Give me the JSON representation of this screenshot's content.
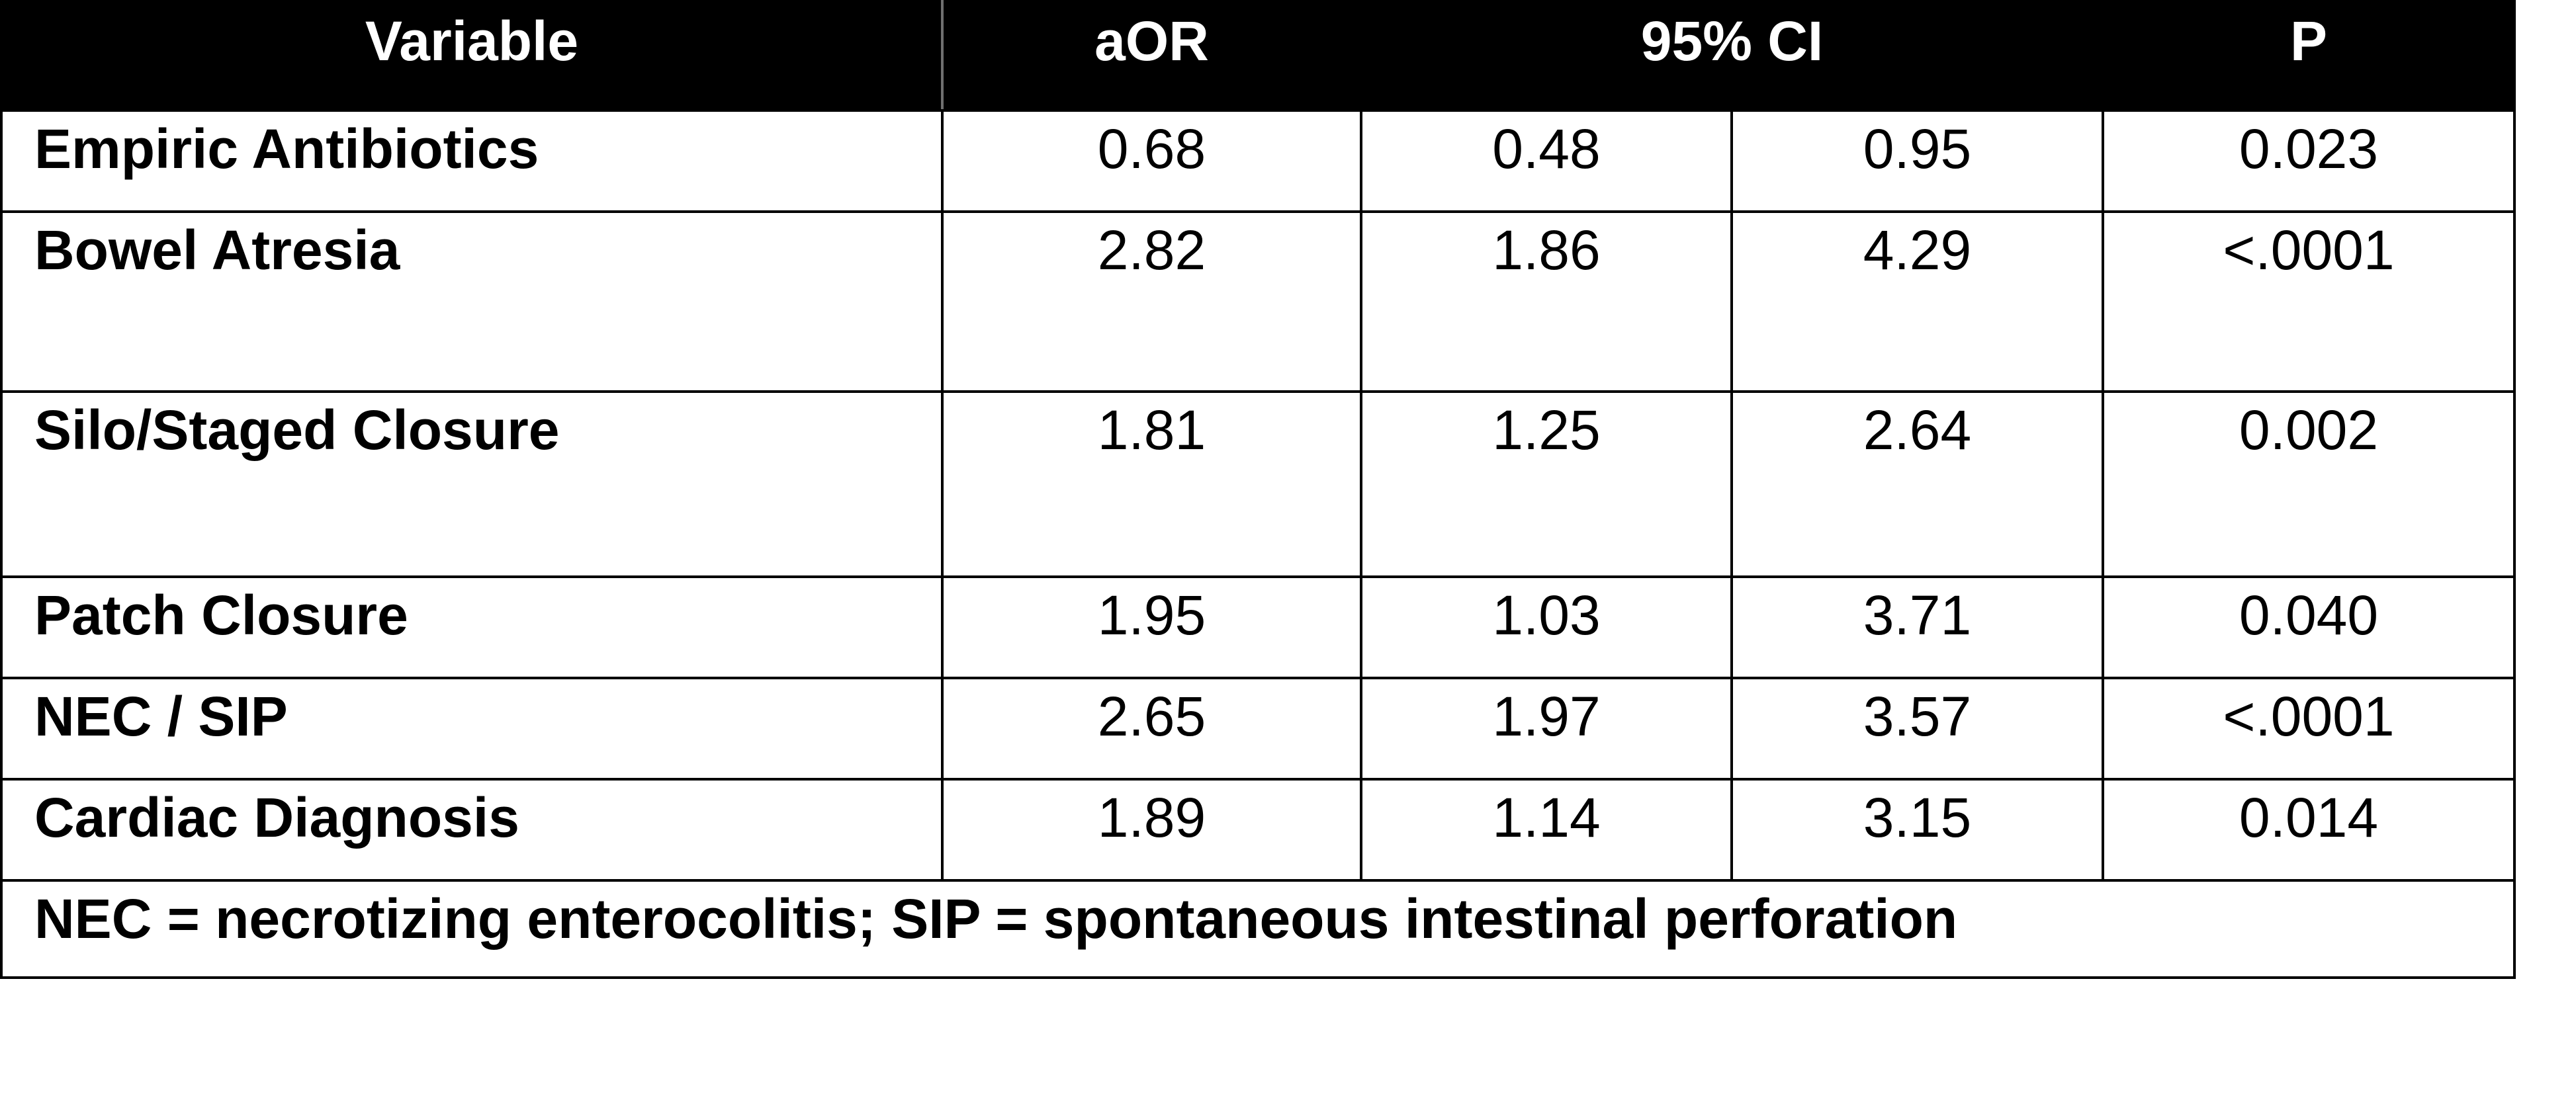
{
  "table": {
    "headers": {
      "variable": "Variable",
      "aor": "aOR",
      "ci": "95% CI",
      "p": "P"
    },
    "rows": [
      {
        "variable": "Empiric Antibiotics",
        "aor": "0.68",
        "ci_low": "0.48",
        "ci_high": "0.95",
        "p": "0.023"
      },
      {
        "variable": "Bowel Atresia",
        "aor": "2.82",
        "ci_low": "1.86",
        "ci_high": "4.29",
        "p": "<.0001"
      },
      {
        "variable": "Silo/Staged Closure",
        "aor": "1.81",
        "ci_low": "1.25",
        "ci_high": "2.64",
        "p": "0.002"
      },
      {
        "variable": "Patch Closure",
        "aor": "1.95",
        "ci_low": "1.03",
        "ci_high": "3.71",
        "p": "0.040"
      },
      {
        "variable": "NEC / SIP",
        "aor": "2.65",
        "ci_low": "1.97",
        "ci_high": "3.57",
        "p": "<.0001"
      },
      {
        "variable": "Cardiac Diagnosis",
        "aor": "1.89",
        "ci_low": "1.14",
        "ci_high": "3.15",
        "p": "0.014"
      }
    ],
    "footnote": "NEC = necrotizing enterocolitis; SIP = spontaneous intestinal perforation"
  }
}
